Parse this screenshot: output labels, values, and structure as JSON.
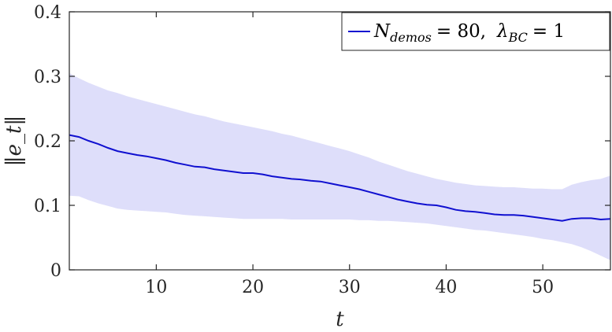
{
  "chart_data": {
    "type": "line",
    "x_label": "t",
    "y_label": "‖e_t‖",
    "xlim": [
      1,
      57
    ],
    "ylim": [
      0,
      0.4
    ],
    "x_ticks": [
      10,
      20,
      30,
      40,
      50
    ],
    "y_ticks": [
      0,
      0.1,
      0.2,
      0.3,
      0.4
    ],
    "x_tick_labels": [
      "10",
      "20",
      "30",
      "40",
      "50"
    ],
    "y_tick_labels": [
      "0",
      "0.1",
      "0.2",
      "0.3",
      "0.4"
    ],
    "grid": false,
    "legend_position": "top-right",
    "legend": {
      "label": "N_demos = 80,  λ_BC = 1",
      "n_symbol": "N",
      "n_subscript": "demos",
      "n_value": "= 80,",
      "lambda_symbol": "λ",
      "lambda_subscript": "BC",
      "lambda_value": "= 1"
    },
    "colors": {
      "line": "#1010d0",
      "band": "#dedefa",
      "axes": "#262626"
    },
    "series": [
      {
        "name": "N_demos = 80,  λ_BC = 1",
        "x": [
          1,
          2,
          3,
          4,
          5,
          6,
          7,
          8,
          9,
          10,
          11,
          12,
          13,
          14,
          15,
          16,
          17,
          18,
          19,
          20,
          21,
          22,
          23,
          24,
          25,
          26,
          27,
          28,
          29,
          30,
          31,
          32,
          33,
          34,
          35,
          36,
          37,
          38,
          39,
          40,
          41,
          42,
          43,
          44,
          45,
          46,
          47,
          48,
          49,
          50,
          51,
          52,
          53,
          54,
          55,
          56,
          57
        ],
        "mean": [
          0.209,
          0.206,
          0.2,
          0.195,
          0.189,
          0.184,
          0.181,
          0.178,
          0.176,
          0.173,
          0.17,
          0.166,
          0.163,
          0.16,
          0.159,
          0.156,
          0.154,
          0.152,
          0.15,
          0.15,
          0.148,
          0.145,
          0.143,
          0.141,
          0.14,
          0.138,
          0.137,
          0.134,
          0.131,
          0.128,
          0.125,
          0.121,
          0.117,
          0.113,
          0.109,
          0.106,
          0.103,
          0.101,
          0.1,
          0.097,
          0.093,
          0.091,
          0.09,
          0.088,
          0.086,
          0.085,
          0.085,
          0.084,
          0.082,
          0.08,
          0.078,
          0.076,
          0.079,
          0.08,
          0.08,
          0.078,
          0.079
        ],
        "upper": [
          0.305,
          0.297,
          0.29,
          0.284,
          0.278,
          0.274,
          0.269,
          0.265,
          0.261,
          0.257,
          0.253,
          0.249,
          0.245,
          0.241,
          0.238,
          0.234,
          0.23,
          0.227,
          0.224,
          0.221,
          0.218,
          0.215,
          0.211,
          0.208,
          0.204,
          0.2,
          0.196,
          0.192,
          0.188,
          0.184,
          0.179,
          0.174,
          0.168,
          0.163,
          0.158,
          0.153,
          0.149,
          0.145,
          0.141,
          0.138,
          0.135,
          0.133,
          0.131,
          0.13,
          0.129,
          0.128,
          0.128,
          0.127,
          0.126,
          0.126,
          0.125,
          0.125,
          0.132,
          0.136,
          0.139,
          0.141,
          0.146
        ],
        "lower": [
          0.115,
          0.114,
          0.108,
          0.103,
          0.099,
          0.095,
          0.093,
          0.092,
          0.091,
          0.09,
          0.089,
          0.087,
          0.085,
          0.084,
          0.083,
          0.082,
          0.081,
          0.08,
          0.079,
          0.079,
          0.079,
          0.079,
          0.079,
          0.078,
          0.078,
          0.078,
          0.078,
          0.078,
          0.078,
          0.078,
          0.077,
          0.077,
          0.076,
          0.076,
          0.075,
          0.074,
          0.073,
          0.072,
          0.07,
          0.068,
          0.066,
          0.064,
          0.062,
          0.061,
          0.059,
          0.057,
          0.055,
          0.053,
          0.051,
          0.048,
          0.046,
          0.043,
          0.04,
          0.035,
          0.029,
          0.022,
          0.015
        ]
      }
    ]
  }
}
